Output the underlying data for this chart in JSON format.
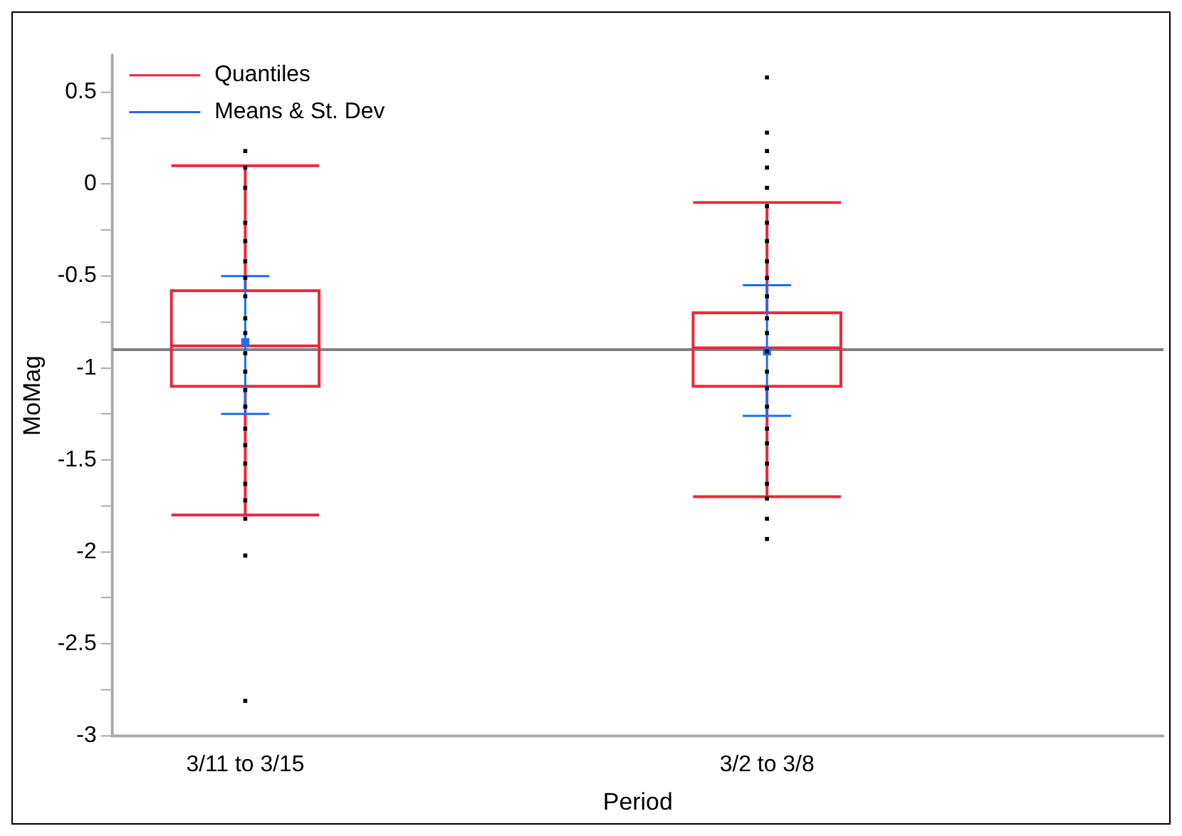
{
  "chart_data": {
    "type": "box",
    "xlabel": "Period",
    "ylabel": "MoMag",
    "categories": [
      "3/11 to 3/15",
      "3/2 to 3/8"
    ],
    "ylim": [
      -3,
      0.7
    ],
    "yticks": [
      -3,
      {
        "value": -2.75,
        "label": null
      },
      -2.5,
      {
        "value": -2.25,
        "label": null
      },
      -2,
      {
        "value": -1.75,
        "label": null
      },
      -1.5,
      {
        "value": -1.25,
        "label": null
      },
      -1,
      {
        "value": -0.75,
        "label": null
      },
      -0.5,
      {
        "value": -0.25,
        "label": null
      },
      0,
      {
        "value": 0.25,
        "label": null
      },
      0.5
    ],
    "grid": false,
    "legend": "top left",
    "ref_lines": [
      {
        "axis": "y",
        "value": -0.9,
        "color": "#808080"
      }
    ],
    "series": [
      {
        "name": "Quantiles",
        "type": "box",
        "color": "#e8283c",
        "boxes": [
          {
            "low": -1.8,
            "q1": -1.1,
            "median": -0.88,
            "q3": -0.58,
            "high": 0.1
          },
          {
            "low": -1.7,
            "q1": -1.1,
            "median": -0.89,
            "q3": -0.7,
            "high": -0.1
          }
        ]
      },
      {
        "name": "Means & St. Dev",
        "type": "scatter",
        "color": "#1e6ee8",
        "x": [
          "3/11 to 3/15",
          "3/2 to 3/8"
        ],
        "values": [
          -0.86,
          -0.91
        ],
        "errors": [
          [
            -1.25,
            -0.5
          ],
          [
            -1.26,
            -0.55
          ]
        ]
      },
      {
        "type": "scatter",
        "color": "#000000",
        "marker": "square",
        "x": [
          "3/11 to 3/15",
          "3/11 to 3/15",
          "3/11 to 3/15",
          "3/11 to 3/15",
          "3/11 to 3/15",
          "3/11 to 3/15",
          "3/11 to 3/15",
          "3/11 to 3/15",
          "3/11 to 3/15",
          "3/11 to 3/15",
          "3/11 to 3/15",
          "3/11 to 3/15",
          "3/11 to 3/15",
          "3/11 to 3/15",
          "3/11 to 3/15",
          "3/11 to 3/15",
          "3/11 to 3/15",
          "3/11 to 3/15",
          "3/11 to 3/15",
          "3/11 to 3/15",
          "3/11 to 3/15",
          "3/11 to 3/15",
          "3/2 to 3/8",
          "3/2 to 3/8",
          "3/2 to 3/8",
          "3/2 to 3/8",
          "3/2 to 3/8",
          "3/2 to 3/8",
          "3/2 to 3/8",
          "3/2 to 3/8",
          "3/2 to 3/8",
          "3/2 to 3/8",
          "3/2 to 3/8",
          "3/2 to 3/8",
          "3/2 to 3/8",
          "3/2 to 3/8",
          "3/2 to 3/8",
          "3/2 to 3/8",
          "3/2 to 3/8",
          "3/2 to 3/8",
          "3/2 to 3/8",
          "3/2 to 3/8",
          "3/2 to 3/8",
          "3/2 to 3/8",
          "3/2 to 3/8",
          "3/2 to 3/8"
        ],
        "values": [
          0.18,
          0.09,
          -0.02,
          -0.21,
          -0.31,
          -0.42,
          -0.51,
          -0.61,
          -0.73,
          -0.81,
          -0.92,
          -1.02,
          -1.12,
          -1.21,
          -1.33,
          -1.42,
          -1.52,
          -1.63,
          -1.72,
          -1.82,
          -2.02,
          -2.81,
          0.58,
          0.28,
          0.18,
          0.09,
          -0.02,
          -0.12,
          -0.21,
          -0.31,
          -0.42,
          -0.51,
          -0.61,
          -0.73,
          -0.81,
          -0.91,
          -1.02,
          -1.11,
          -1.21,
          -1.33,
          -1.41,
          -1.52,
          -1.63,
          -1.71,
          -1.82,
          -1.93
        ]
      }
    ]
  }
}
